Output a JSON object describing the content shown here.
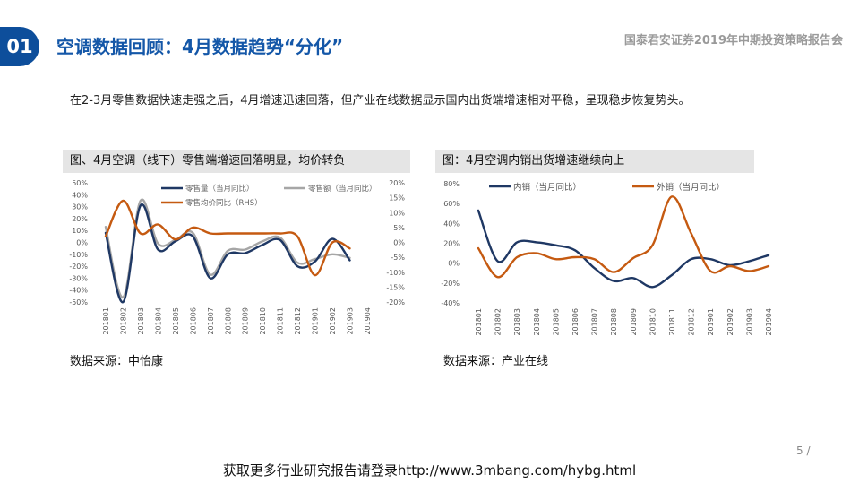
{
  "header": {
    "section_number": "01",
    "title": "空调数据回顾：4月数据趋势“分化”",
    "brand": "国泰君安证券2019年中期投资策略报告会"
  },
  "intro": "在2-3月零售数据快速走强之后，4月增速迅速回落，但产业在线数据显示国内出货端增速相对平稳，呈现稳步恢复势头。",
  "left_panel": {
    "title": "图、4月空调（线下）零售端增速回落明显，均价转负",
    "source": "数据来源：中怡康"
  },
  "right_panel": {
    "title": "图：4月空调内销出货增速继续向上",
    "source": "数据来源：产业在线"
  },
  "page_number": "5 /",
  "footer": "获取更多行业研究报告请登录http://www.3mbang.com/hybg.html",
  "colors": {
    "badge": "#0d4e9b",
    "title": "#1457a8",
    "navy": "#1f3864",
    "gray": "#a6a6a6",
    "orange": "#c55a11"
  },
  "chart_data": [
    {
      "type": "line",
      "categories": [
        "201801",
        "201802",
        "201803",
        "201804",
        "201805",
        "201806",
        "201807",
        "201808",
        "201809",
        "201810",
        "201811",
        "201812",
        "201901",
        "201902",
        "201903",
        "201904"
      ],
      "yticks_left": [
        "50%",
        "40%",
        "30%",
        "20%",
        "10%",
        "0%",
        "-10%",
        "-20%",
        "-30%",
        "-40%",
        "-50%"
      ],
      "yticks_right": [
        "20%",
        "15%",
        "10%",
        "5%",
        "0%",
        "-5%",
        "-10%",
        "-15%",
        "-20%"
      ],
      "ylim": [
        -50,
        50
      ],
      "ylim_right": [
        -20,
        20
      ],
      "legend_position": "top",
      "series": [
        {
          "name": "零售量（当月同比）",
          "color": "#1f3864",
          "axis": "left",
          "values": [
            8,
            -50,
            31,
            -6,
            1,
            5,
            -30,
            -10,
            -9,
            -2,
            2,
            -20,
            -16,
            3,
            -15,
            null
          ]
        },
        {
          "name": "零售额（当月同比）",
          "color": "#a6a6a6",
          "axis": "left",
          "values": [
            13,
            -46,
            35,
            -1,
            2,
            8,
            -27,
            -7,
            -6,
            1,
            4,
            -17,
            -14,
            -10,
            -13,
            null
          ]
        },
        {
          "name": "零售均价同比（RHS）",
          "color": "#c55a11",
          "axis": "right",
          "values": [
            2,
            14,
            3,
            6,
            1,
            5,
            3,
            3,
            3,
            3,
            3,
            2,
            -11,
            0,
            -2,
            null
          ]
        }
      ]
    },
    {
      "type": "line",
      "categories": [
        "201801",
        "201802",
        "201803",
        "201804",
        "201805",
        "201806",
        "201807",
        "201808",
        "201809",
        "201810",
        "201811",
        "201812",
        "201901",
        "201902",
        "201903",
        "201904"
      ],
      "yticks": [
        "80%",
        "60%",
        "40%",
        "20%",
        "0%",
        "-20%",
        "-40%"
      ],
      "ylim": [
        -40,
        80
      ],
      "legend_position": "top",
      "series": [
        {
          "name": "内销（当月同比）",
          "color": "#1f3864",
          "values": [
            53,
            2,
            21,
            21,
            18,
            13,
            -5,
            -18,
            -15,
            -24,
            -12,
            4,
            4,
            -2,
            2,
            8
          ]
        },
        {
          "name": "外销（当月同比）",
          "color": "#c55a11",
          "values": [
            15,
            -14,
            6,
            10,
            4,
            6,
            4,
            -9,
            5,
            18,
            67,
            30,
            -8,
            -3,
            -8,
            -3
          ]
        }
      ]
    }
  ]
}
